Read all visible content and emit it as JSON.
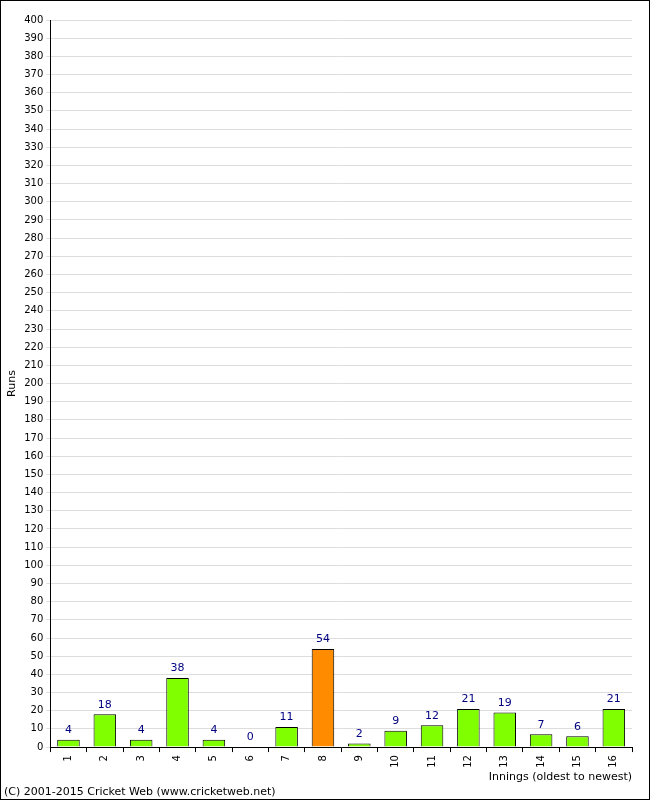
{
  "chart_data": {
    "type": "bar",
    "categories": [
      "1",
      "2",
      "3",
      "4",
      "5",
      "6",
      "7",
      "8",
      "9",
      "10",
      "11",
      "12",
      "13",
      "14",
      "15",
      "16"
    ],
    "values": [
      4,
      18,
      4,
      38,
      4,
      0,
      11,
      54,
      2,
      9,
      12,
      21,
      19,
      7,
      6,
      21
    ],
    "colors": [
      "#80ff00",
      "#80ff00",
      "#80ff00",
      "#80ff00",
      "#80ff00",
      "#80ff00",
      "#80ff00",
      "#ff8c00",
      "#80ff00",
      "#80ff00",
      "#80ff00",
      "#80ff00",
      "#80ff00",
      "#80ff00",
      "#80ff00",
      "#80ff00"
    ],
    "x_label": "Innings (oldest to newest)",
    "y_label": "Runs",
    "annotations": [
      "(C) 2001-2015 Cricket Web (www.cricketweb.net)"
    ],
    "ylim": [
      0,
      400
    ],
    "yticks": [
      0,
      10,
      20,
      30,
      40,
      50,
      60,
      70,
      80,
      90,
      100,
      110,
      120,
      130,
      140,
      150,
      160,
      170,
      180,
      190,
      200,
      210,
      220,
      230,
      240,
      250,
      260,
      270,
      280,
      290,
      300,
      310,
      320,
      330,
      340,
      350,
      360,
      370,
      380,
      390,
      400
    ],
    "grid": true,
    "data_labels": true
  }
}
